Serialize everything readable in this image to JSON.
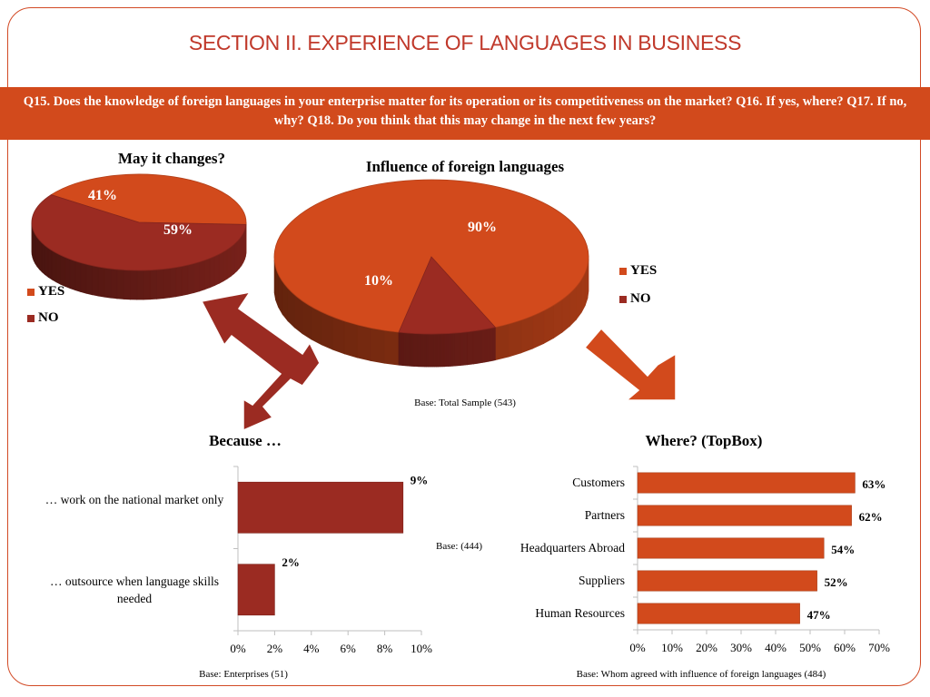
{
  "title": "SECTION II. EXPERIENCE OF LANGUAGES IN BUSINESS",
  "banner": "Q15. Does the knowledge of foreign languages in your enterprise matter for its operation or its competitiveness on the market? Q16. If yes, where? Q17. If no, why? Q18. Do you think that this may change in the next few years?",
  "colors": {
    "yes": "#d24a1c",
    "no": "#9b2b22",
    "accent": "#c0392b"
  },
  "chart_data": [
    {
      "type": "pie",
      "title": "May it changes?",
      "labels": [
        "YES",
        "NO"
      ],
      "values": [
        41,
        59
      ],
      "value_labels": [
        "41%",
        "59%"
      ],
      "legend": "bottom-left"
    },
    {
      "type": "pie",
      "title": "Influence of foreign languages",
      "labels": [
        "YES",
        "NO"
      ],
      "values": [
        90,
        10
      ],
      "value_labels": [
        "90%",
        "10%"
      ],
      "legend": "right",
      "base": "Base: Total Sample (543)"
    },
    {
      "type": "bar",
      "orientation": "horizontal",
      "title": "Because …",
      "categories": [
        "… work on the national market only",
        "… outsource when language skills needed"
      ],
      "values": [
        9,
        2
      ],
      "value_labels": [
        "9%",
        "2%"
      ],
      "xlim": [
        0,
        10
      ],
      "xticks": [
        "0%",
        "2%",
        "4%",
        "6%",
        "8%",
        "10%"
      ],
      "base": "Base: Enterprises (51)",
      "side_note": "Base: (444)"
    },
    {
      "type": "bar",
      "orientation": "horizontal",
      "title": "Where? (TopBox)",
      "categories": [
        "Customers",
        "Partners",
        "Headquarters Abroad",
        "Suppliers",
        "Human Resources"
      ],
      "values": [
        63,
        62,
        54,
        52,
        47
      ],
      "value_labels": [
        "63%",
        "62%",
        "54%",
        "52%",
        "47%"
      ],
      "xlim": [
        0,
        70
      ],
      "xticks": [
        "0%",
        "10%",
        "20%",
        "30%",
        "40%",
        "50%",
        "60%",
        "70%"
      ],
      "base": "Base: Whom agreed with influence of foreign languages (484)"
    }
  ]
}
